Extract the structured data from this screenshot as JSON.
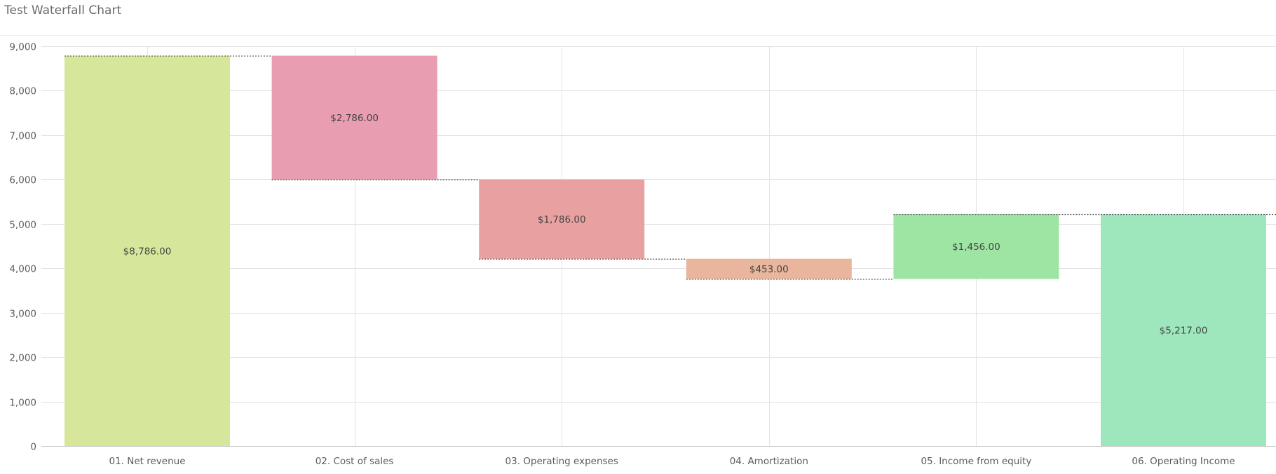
{
  "header": {
    "title": "Test Waterfall Chart"
  },
  "chart_data": {
    "type": "bar",
    "subtype": "waterfall",
    "title": "Test Waterfall Chart",
    "xlabel": "",
    "ylabel": "",
    "ylim": [
      0,
      9000
    ],
    "yticks": [
      0,
      1000,
      2000,
      3000,
      4000,
      5000,
      6000,
      7000,
      8000,
      9000
    ],
    "ytick_labels": [
      "0",
      "1,000",
      "2,000",
      "3,000",
      "4,000",
      "5,000",
      "6,000",
      "7,000",
      "8,000",
      "9,000"
    ],
    "grid": true,
    "legend": "none",
    "categories": [
      "01. Net revenue",
      "02. Cost of sales",
      "03. Operating expenses",
      "04. Amortization",
      "05. Income from equity",
      "06. Operating Income"
    ],
    "values": [
      8786,
      -2786,
      -1786,
      -453,
      1456,
      5217
    ],
    "bar_kinds": [
      "total",
      "delta",
      "delta",
      "delta",
      "delta",
      "total"
    ],
    "data_labels": [
      "$8,786.00",
      "$2,786.00",
      "$1,786.00",
      "$453.00",
      "$1,456.00",
      "$5,217.00"
    ],
    "colors": [
      "#d6e79b",
      "#e89db0",
      "#e9a0a0",
      "#e9b69d",
      "#9ee5a3",
      "#9ee6bb"
    ]
  }
}
